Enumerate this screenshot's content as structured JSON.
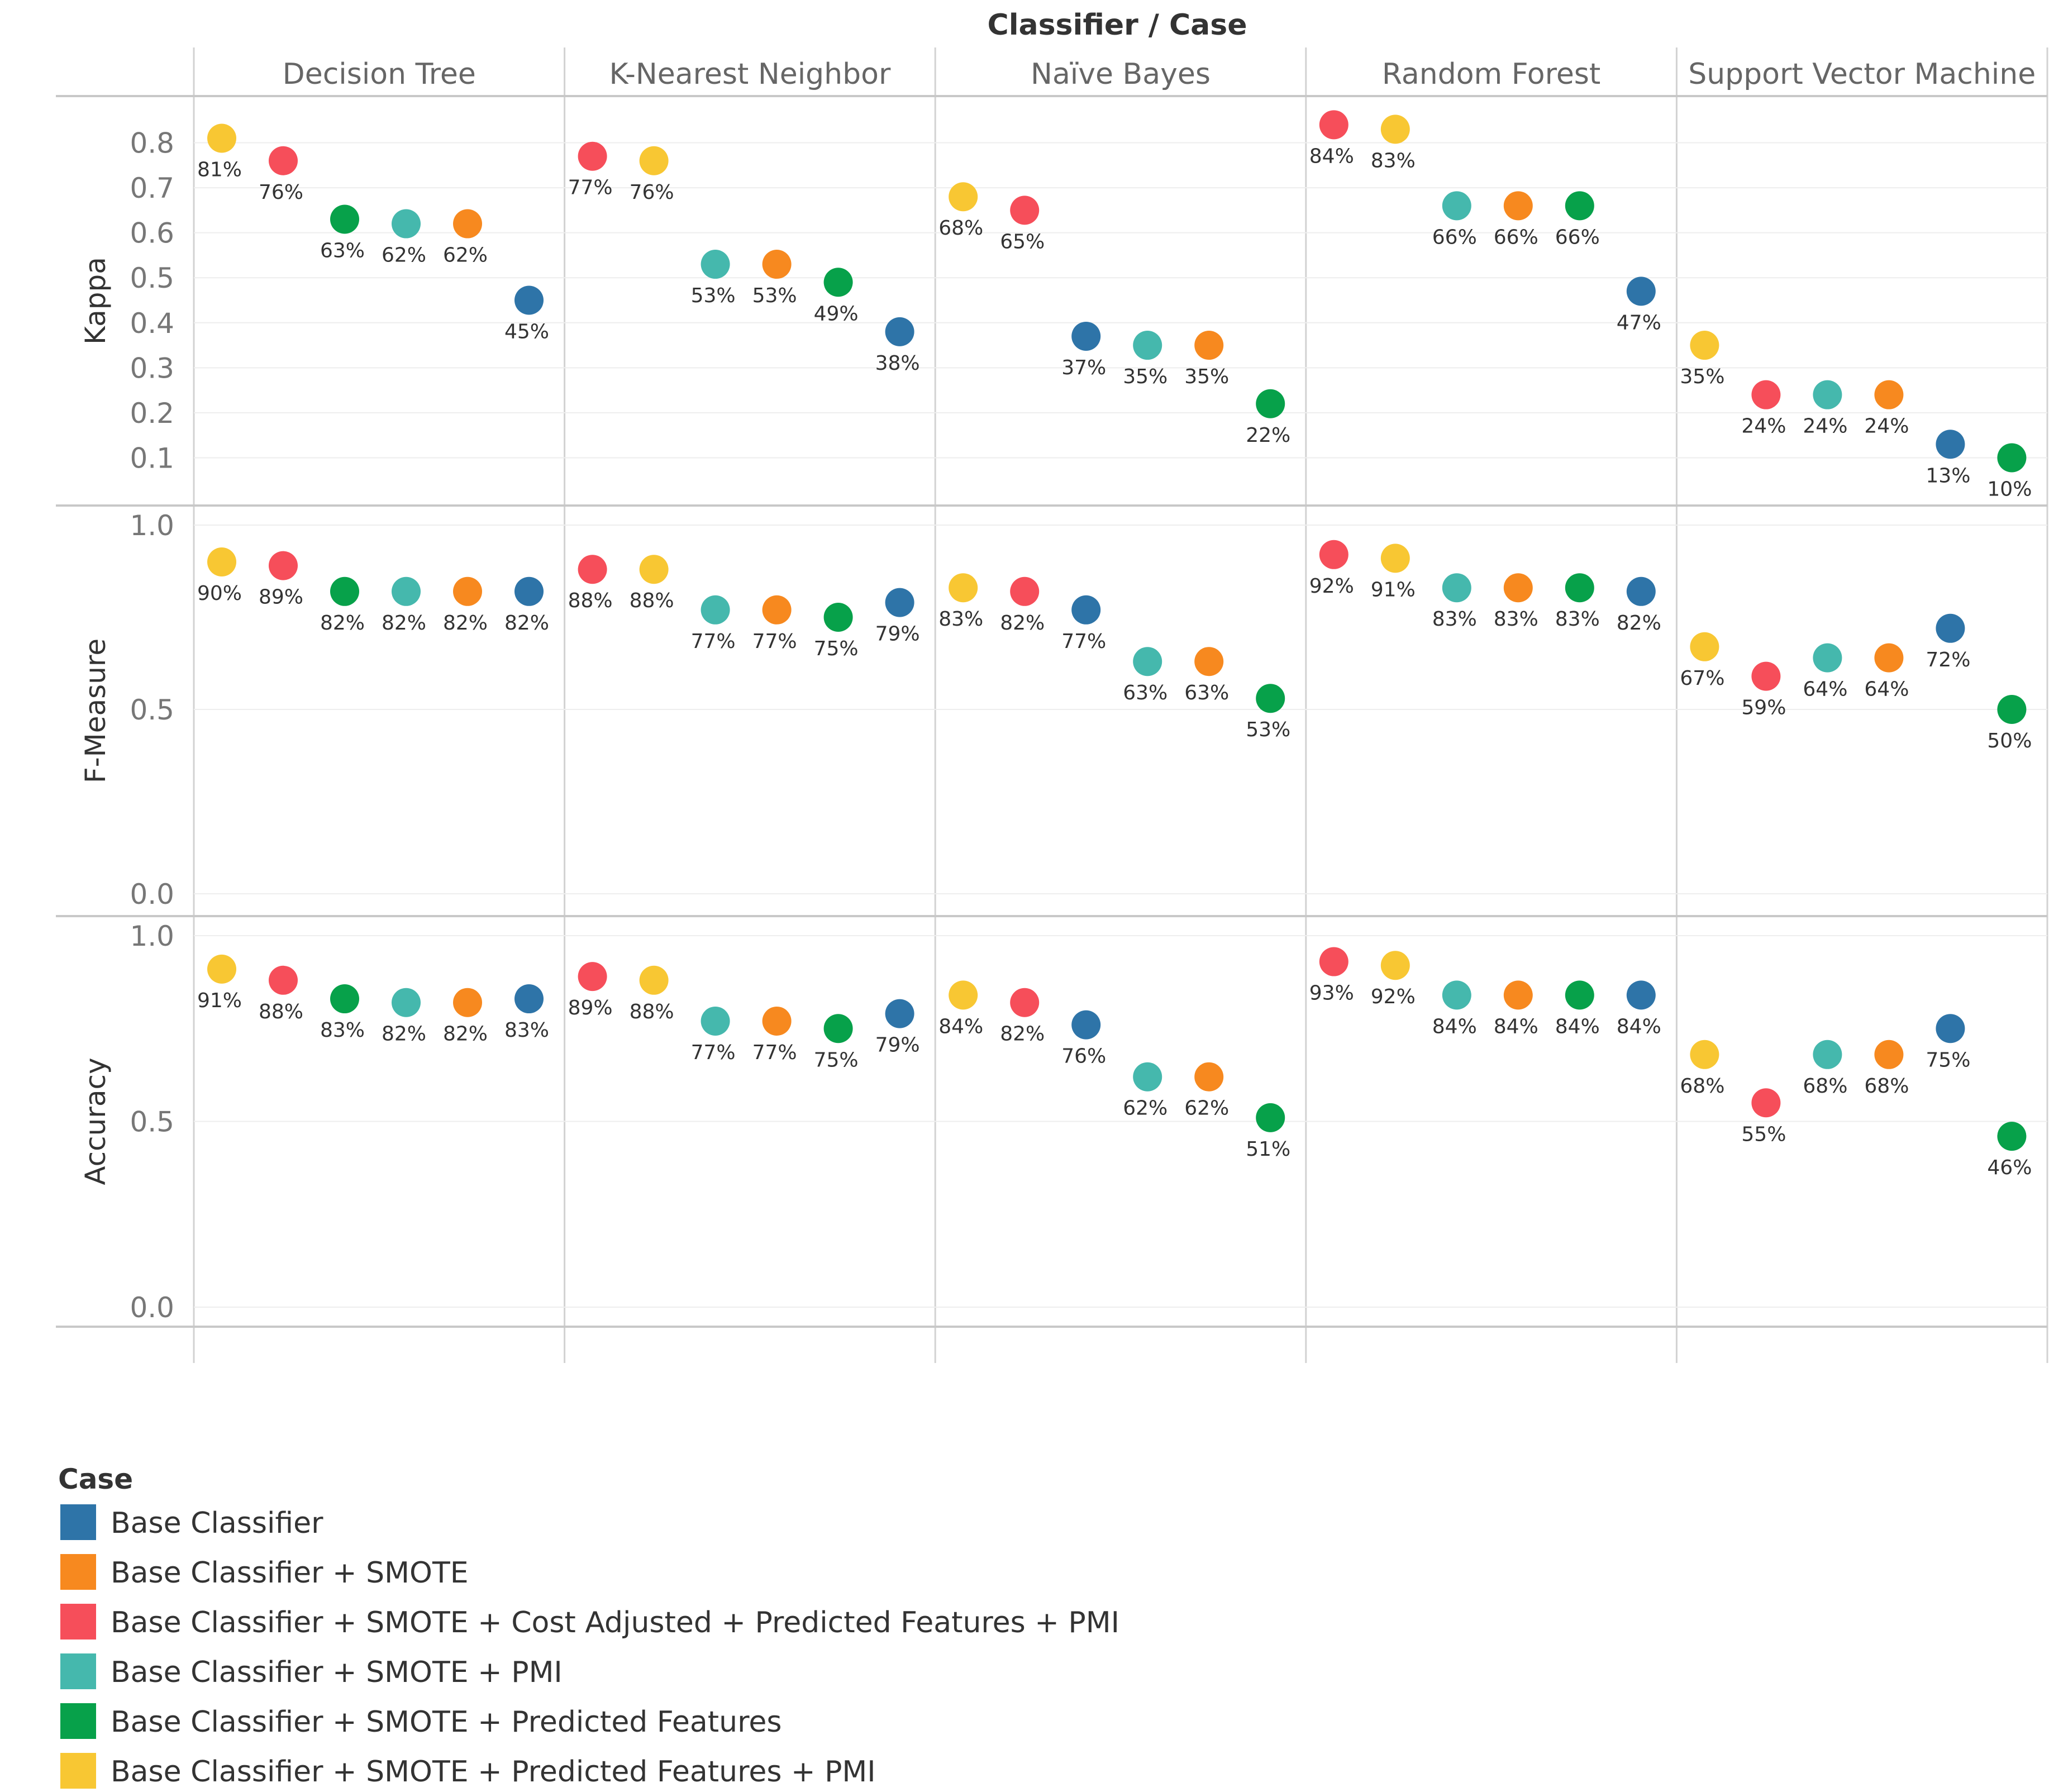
{
  "chart_data": {
    "type": "scatter",
    "title": "Classifier / Case",
    "columns": [
      "Decision Tree",
      "K-Nearest Neighbor",
      "Naïve Bayes",
      "Random Forest",
      "Support Vector Machine"
    ],
    "rows": [
      {
        "name": "Kappa",
        "ylim": [
          0.0,
          0.9
        ],
        "ticks": [
          "0.1",
          "0.2",
          "0.3",
          "0.4",
          "0.5",
          "0.6",
          "0.7",
          "0.8"
        ],
        "tick_values": [
          0.1,
          0.2,
          0.3,
          0.4,
          0.5,
          0.6,
          0.7,
          0.8
        ]
      },
      {
        "name": "F-Measure",
        "ylim": [
          0.0,
          1.0
        ],
        "ticks": [
          "0.0",
          "0.5",
          "1.0"
        ],
        "tick_values": [
          0.0,
          0.5,
          1.0
        ]
      },
      {
        "name": "Accuracy",
        "ylim": [
          0.0,
          1.0
        ],
        "ticks": [
          "0.0",
          "0.5",
          "1.0"
        ],
        "tick_values": [
          0.0,
          0.5,
          1.0
        ]
      }
    ],
    "legend_title": "Case",
    "cases": [
      {
        "name": "Base Classifier",
        "color": "#2e74a8"
      },
      {
        "name": "Base Classifier + SMOTE",
        "color": "#f7891f"
      },
      {
        "name": "Base Classifier + SMOTE + Cost Adjusted + Predicted Features + PMI",
        "color": "#f64e5a"
      },
      {
        "name": "Base Classifier + SMOTE +  PMI",
        "color": "#45b8ad"
      },
      {
        "name": "Base Classifier + SMOTE + Predicted Features",
        "color": "#07a14a"
      },
      {
        "name": "Base Classifier + SMOTE + Predicted Features + PMI",
        "color": "#f8c733"
      }
    ],
    "panels": [
      [
        [
          {
            "c": 5,
            "v": 0.81,
            "l": "81%"
          },
          {
            "c": 2,
            "v": 0.76,
            "l": "76%"
          },
          {
            "c": 4,
            "v": 0.63,
            "l": "63%"
          },
          {
            "c": 3,
            "v": 0.62,
            "l": "62%"
          },
          {
            "c": 1,
            "v": 0.62,
            "l": "62%"
          },
          {
            "c": 0,
            "v": 0.45,
            "l": "45%"
          }
        ],
        [
          {
            "c": 2,
            "v": 0.77,
            "l": "77%"
          },
          {
            "c": 5,
            "v": 0.76,
            "l": "76%"
          },
          {
            "c": 3,
            "v": 0.53,
            "l": "53%"
          },
          {
            "c": 1,
            "v": 0.53,
            "l": "53%"
          },
          {
            "c": 4,
            "v": 0.49,
            "l": "49%"
          },
          {
            "c": 0,
            "v": 0.38,
            "l": "38%"
          }
        ],
        [
          {
            "c": 5,
            "v": 0.68,
            "l": "68%"
          },
          {
            "c": 2,
            "v": 0.65,
            "l": "65%"
          },
          {
            "c": 0,
            "v": 0.37,
            "l": "37%"
          },
          {
            "c": 3,
            "v": 0.35,
            "l": "35%"
          },
          {
            "c": 1,
            "v": 0.35,
            "l": "35%"
          },
          {
            "c": 4,
            "v": 0.22,
            "l": "22%"
          }
        ],
        [
          {
            "c": 2,
            "v": 0.84,
            "l": "84%"
          },
          {
            "c": 5,
            "v": 0.83,
            "l": "83%"
          },
          {
            "c": 3,
            "v": 0.66,
            "l": "66%"
          },
          {
            "c": 1,
            "v": 0.66,
            "l": "66%"
          },
          {
            "c": 4,
            "v": 0.66,
            "l": "66%"
          },
          {
            "c": 0,
            "v": 0.47,
            "l": "47%"
          }
        ],
        [
          {
            "c": 5,
            "v": 0.35,
            "l": "35%"
          },
          {
            "c": 2,
            "v": 0.24,
            "l": "24%"
          },
          {
            "c": 3,
            "v": 0.24,
            "l": "24%"
          },
          {
            "c": 1,
            "v": 0.24,
            "l": "24%"
          },
          {
            "c": 0,
            "v": 0.13,
            "l": "13%"
          },
          {
            "c": 4,
            "v": 0.1,
            "l": "10%"
          }
        ]
      ],
      [
        [
          {
            "c": 5,
            "v": 0.9,
            "l": "90%"
          },
          {
            "c": 2,
            "v": 0.89,
            "l": "89%"
          },
          {
            "c": 4,
            "v": 0.82,
            "l": "82%"
          },
          {
            "c": 3,
            "v": 0.82,
            "l": "82%"
          },
          {
            "c": 1,
            "v": 0.82,
            "l": "82%"
          },
          {
            "c": 0,
            "v": 0.82,
            "l": "82%"
          }
        ],
        [
          {
            "c": 2,
            "v": 0.88,
            "l": "88%"
          },
          {
            "c": 5,
            "v": 0.88,
            "l": "88%"
          },
          {
            "c": 3,
            "v": 0.77,
            "l": "77%"
          },
          {
            "c": 1,
            "v": 0.77,
            "l": "77%"
          },
          {
            "c": 4,
            "v": 0.75,
            "l": "75%"
          },
          {
            "c": 0,
            "v": 0.79,
            "l": "79%"
          }
        ],
        [
          {
            "c": 5,
            "v": 0.83,
            "l": "83%"
          },
          {
            "c": 2,
            "v": 0.82,
            "l": "82%"
          },
          {
            "c": 0,
            "v": 0.77,
            "l": "77%"
          },
          {
            "c": 3,
            "v": 0.63,
            "l": "63%"
          },
          {
            "c": 1,
            "v": 0.63,
            "l": "63%"
          },
          {
            "c": 4,
            "v": 0.53,
            "l": "53%"
          }
        ],
        [
          {
            "c": 2,
            "v": 0.92,
            "l": "92%"
          },
          {
            "c": 5,
            "v": 0.91,
            "l": "91%"
          },
          {
            "c": 3,
            "v": 0.83,
            "l": "83%"
          },
          {
            "c": 1,
            "v": 0.83,
            "l": "83%"
          },
          {
            "c": 4,
            "v": 0.83,
            "l": "83%"
          },
          {
            "c": 0,
            "v": 0.82,
            "l": "82%"
          }
        ],
        [
          {
            "c": 5,
            "v": 0.67,
            "l": "67%"
          },
          {
            "c": 2,
            "v": 0.59,
            "l": "59%"
          },
          {
            "c": 3,
            "v": 0.64,
            "l": "64%"
          },
          {
            "c": 1,
            "v": 0.64,
            "l": "64%"
          },
          {
            "c": 0,
            "v": 0.72,
            "l": "72%"
          },
          {
            "c": 4,
            "v": 0.5,
            "l": "50%"
          }
        ]
      ],
      [
        [
          {
            "c": 5,
            "v": 0.91,
            "l": "91%"
          },
          {
            "c": 2,
            "v": 0.88,
            "l": "88%"
          },
          {
            "c": 4,
            "v": 0.83,
            "l": "83%"
          },
          {
            "c": 3,
            "v": 0.82,
            "l": "82%"
          },
          {
            "c": 1,
            "v": 0.82,
            "l": "82%"
          },
          {
            "c": 0,
            "v": 0.83,
            "l": "83%"
          }
        ],
        [
          {
            "c": 2,
            "v": 0.89,
            "l": "89%"
          },
          {
            "c": 5,
            "v": 0.88,
            "l": "88%"
          },
          {
            "c": 3,
            "v": 0.77,
            "l": "77%"
          },
          {
            "c": 1,
            "v": 0.77,
            "l": "77%"
          },
          {
            "c": 4,
            "v": 0.75,
            "l": "75%"
          },
          {
            "c": 0,
            "v": 0.79,
            "l": "79%"
          }
        ],
        [
          {
            "c": 5,
            "v": 0.84,
            "l": "84%"
          },
          {
            "c": 2,
            "v": 0.82,
            "l": "82%"
          },
          {
            "c": 0,
            "v": 0.76,
            "l": "76%"
          },
          {
            "c": 3,
            "v": 0.62,
            "l": "62%"
          },
          {
            "c": 1,
            "v": 0.62,
            "l": "62%"
          },
          {
            "c": 4,
            "v": 0.51,
            "l": "51%"
          }
        ],
        [
          {
            "c": 2,
            "v": 0.93,
            "l": "93%"
          },
          {
            "c": 5,
            "v": 0.92,
            "l": "92%"
          },
          {
            "c": 3,
            "v": 0.84,
            "l": "84%"
          },
          {
            "c": 1,
            "v": 0.84,
            "l": "84%"
          },
          {
            "c": 4,
            "v": 0.84,
            "l": "84%"
          },
          {
            "c": 0,
            "v": 0.84,
            "l": "84%"
          }
        ],
        [
          {
            "c": 5,
            "v": 0.68,
            "l": "68%"
          },
          {
            "c": 2,
            "v": 0.55,
            "l": "55%"
          },
          {
            "c": 3,
            "v": 0.68,
            "l": "68%"
          },
          {
            "c": 1,
            "v": 0.68,
            "l": "68%"
          },
          {
            "c": 0,
            "v": 0.75,
            "l": "75%"
          },
          {
            "c": 4,
            "v": 0.46,
            "l": "46%"
          }
        ]
      ]
    ]
  }
}
